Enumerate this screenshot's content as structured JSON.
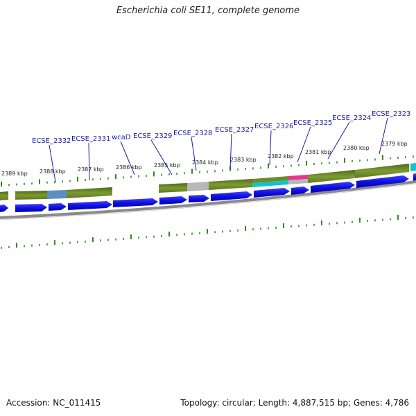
{
  "title": "Escherichia coli SE11, complete genome",
  "accession": "Accession: NC_011415",
  "topology": "Topology: circular; Length: 4,887,515 bp; Genes: 4,786",
  "colors": {
    "cog_green": "#6e8b2a",
    "cog_blue_grey": "#5b8fc2",
    "cog_grey": "#b8b8b8",
    "cog_cyan": "#12c4c8",
    "cog_pink": "#e8358c",
    "cds_blue": "#1010e0",
    "backbone": "#8a8a8a",
    "tick_green": "#2e8b1e",
    "label_blue": "#1a1aa6"
  },
  "kbp_ticks": [
    "2389 kbp",
    "2388 kbp",
    "2387 kbp",
    "2386 kbp",
    "2385 kbp",
    "2384 kbp",
    "2383 kbp",
    "2382 kbp",
    "2381 kbp",
    "2380 kbp",
    "2379 kbp"
  ],
  "gene_labels": [
    "ECSE_2332",
    "ECSE_2331",
    "wcaD",
    "ECSE_2329",
    "ECSE_2328",
    "ECSE_2327",
    "ECSE_2326",
    "ECSE_2325",
    "ECSE_2324",
    "ECSE_2323"
  ]
}
